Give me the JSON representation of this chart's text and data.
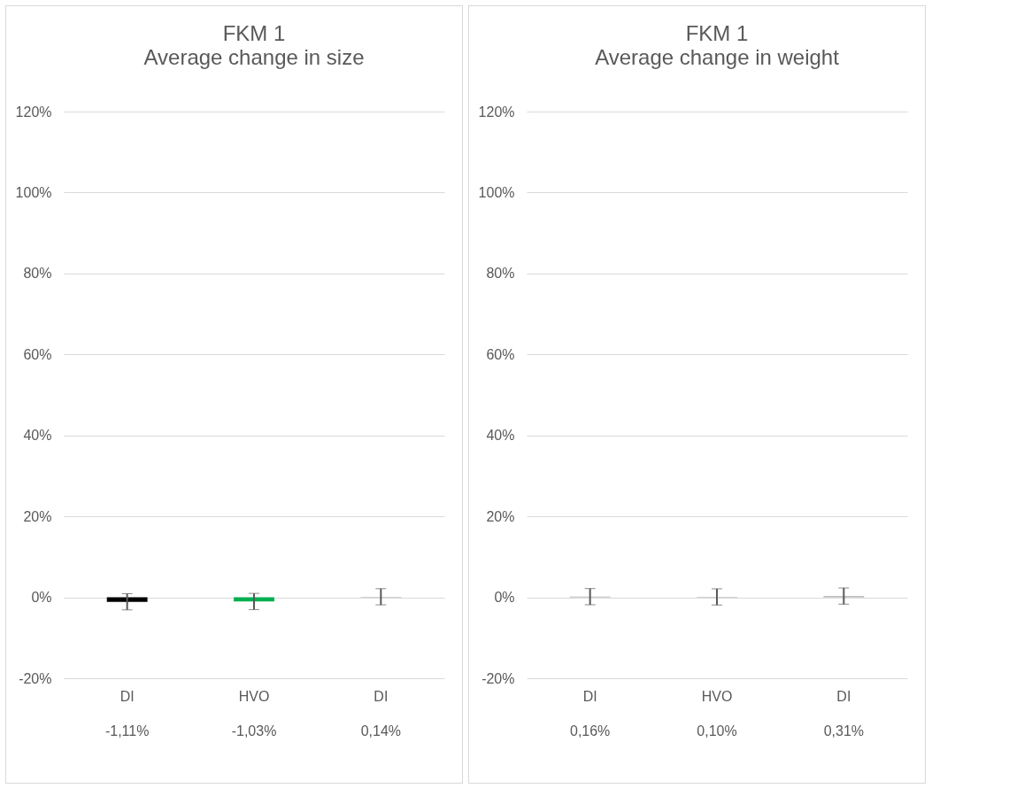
{
  "chart_data": [
    {
      "type": "bar",
      "title": "FKM 1",
      "subtitle": "Average change in size",
      "categories": [
        "DI",
        "HVO",
        "DI"
      ],
      "values": [
        -1.11,
        -1.03,
        0.14
      ],
      "colors": [
        "#000000",
        "#00b050",
        "#a6a6a6"
      ],
      "errors": [
        2,
        2,
        2
      ],
      "value_labels": [
        "-1,11%",
        "-1,03%",
        "0,14%"
      ],
      "ylim": [
        -20,
        120
      ],
      "yticks": [
        {
          "value": -20,
          "label": "-20%"
        },
        {
          "value": 0,
          "label": "0%"
        },
        {
          "value": 20,
          "label": "20%"
        },
        {
          "value": 40,
          "label": "40%"
        },
        {
          "value": 60,
          "label": "60%"
        },
        {
          "value": 80,
          "label": "80%"
        },
        {
          "value": 100,
          "label": "100%"
        },
        {
          "value": 120,
          "label": "120%"
        }
      ],
      "grid": "y"
    },
    {
      "type": "bar",
      "title": "FKM 1",
      "subtitle": "Average change in weight",
      "categories": [
        "DI",
        "HVO",
        "DI"
      ],
      "values": [
        0.16,
        0.1,
        0.31
      ],
      "colors": [
        "#a6a6a6",
        "#a6a6a6",
        "#a6a6a6"
      ],
      "errors": [
        2,
        2,
        2
      ],
      "value_labels": [
        "0,16%",
        "0,10%",
        "0,31%"
      ],
      "ylim": [
        -20,
        120
      ],
      "yticks": [
        {
          "value": -20,
          "label": "-20%"
        },
        {
          "value": 0,
          "label": "0%"
        },
        {
          "value": 20,
          "label": "20%"
        },
        {
          "value": 40,
          "label": "40%"
        },
        {
          "value": 60,
          "label": "60%"
        },
        {
          "value": 80,
          "label": "80%"
        },
        {
          "value": 100,
          "label": "100%"
        },
        {
          "value": 120,
          "label": "120%"
        }
      ],
      "grid": "y"
    }
  ]
}
